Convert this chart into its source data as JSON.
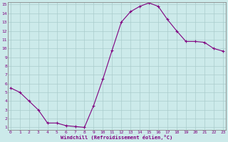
{
  "x": [
    0,
    1,
    2,
    3,
    4,
    5,
    6,
    7,
    8,
    9,
    10,
    11,
    12,
    13,
    14,
    15,
    16,
    17,
    18,
    19,
    20,
    21,
    22,
    23
  ],
  "y": [
    5.5,
    5.0,
    4.0,
    3.0,
    1.5,
    1.5,
    1.2,
    1.1,
    1.0,
    3.5,
    6.5,
    9.8,
    13.0,
    14.2,
    14.8,
    15.2,
    14.8,
    13.3,
    12.0,
    10.8,
    10.8,
    10.7,
    10.0,
    9.7
  ],
  "line_color": "#800080",
  "marker": "+",
  "markersize": 3,
  "linewidth": 0.8,
  "bg_color": "#cceaea",
  "grid_color": "#aacccc",
  "xlabel": "Windchill (Refroidissement éolien,°C)",
  "xlabel_color": "#800080",
  "tick_color": "#800080",
  "spine_color": "#888888",
  "ylim_min": 1,
  "ylim_max": 15,
  "xlim_min": 0,
  "xlim_max": 23,
  "yticks": [
    1,
    2,
    3,
    4,
    5,
    6,
    7,
    8,
    9,
    10,
    11,
    12,
    13,
    14,
    15
  ],
  "xticks": [
    0,
    1,
    2,
    3,
    4,
    5,
    6,
    7,
    8,
    9,
    10,
    11,
    12,
    13,
    14,
    15,
    16,
    17,
    18,
    19,
    20,
    21,
    22,
    23
  ],
  "tick_fontsize": 4.5,
  "xlabel_fontsize": 5.0,
  "xlabel_fontweight": "bold"
}
